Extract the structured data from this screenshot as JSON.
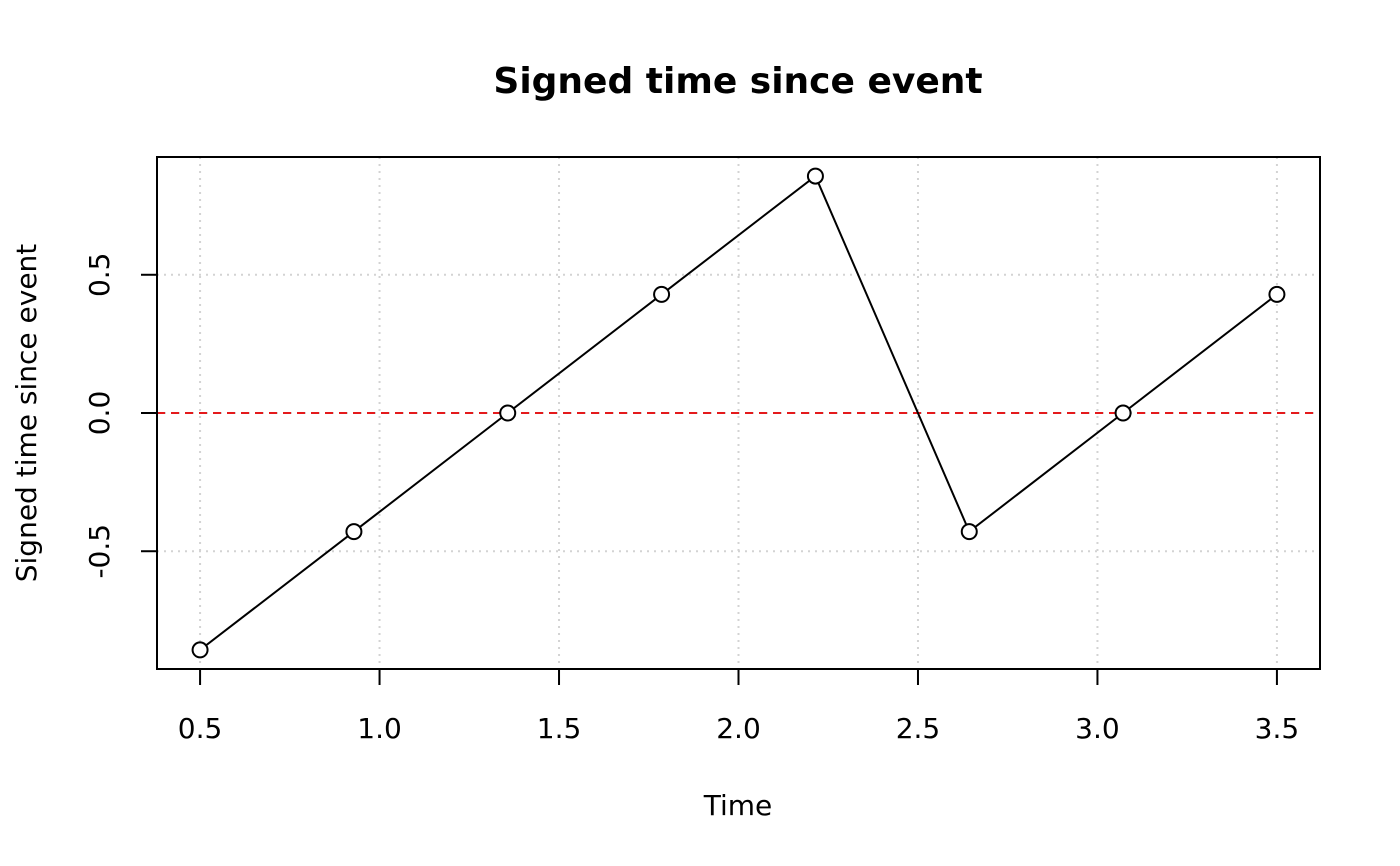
{
  "chart_data": {
    "type": "line",
    "title": "Signed time since event",
    "x_label": "Time",
    "y_label": "Signed time since event",
    "x": [
      0.5,
      0.9286,
      1.3571,
      1.7857,
      2.2143,
      2.6429,
      3.0714,
      3.5
    ],
    "series": [
      {
        "name": "Signed time since event",
        "color": "#000000",
        "values": [
          -0.857,
          -0.429,
          0,
          0.429,
          0.857,
          -0.429,
          0,
          0.429
        ]
      }
    ],
    "xlim": [
      0.38,
      3.62
    ],
    "ylim": [
      -0.926,
      0.926
    ],
    "xticks": [
      0.5,
      {
        "value": 1,
        "label": "1.0"
      },
      1.5,
      {
        "value": 2,
        "label": "2.0"
      },
      2.5,
      {
        "value": 3,
        "label": "3.0"
      },
      3.5
    ],
    "yticks": [
      -0.5,
      {
        "value": 0,
        "label": "0.0"
      },
      0.5
    ],
    "grid": true,
    "hline": {
      "value": 0,
      "color": "#e41a1c"
    }
  }
}
